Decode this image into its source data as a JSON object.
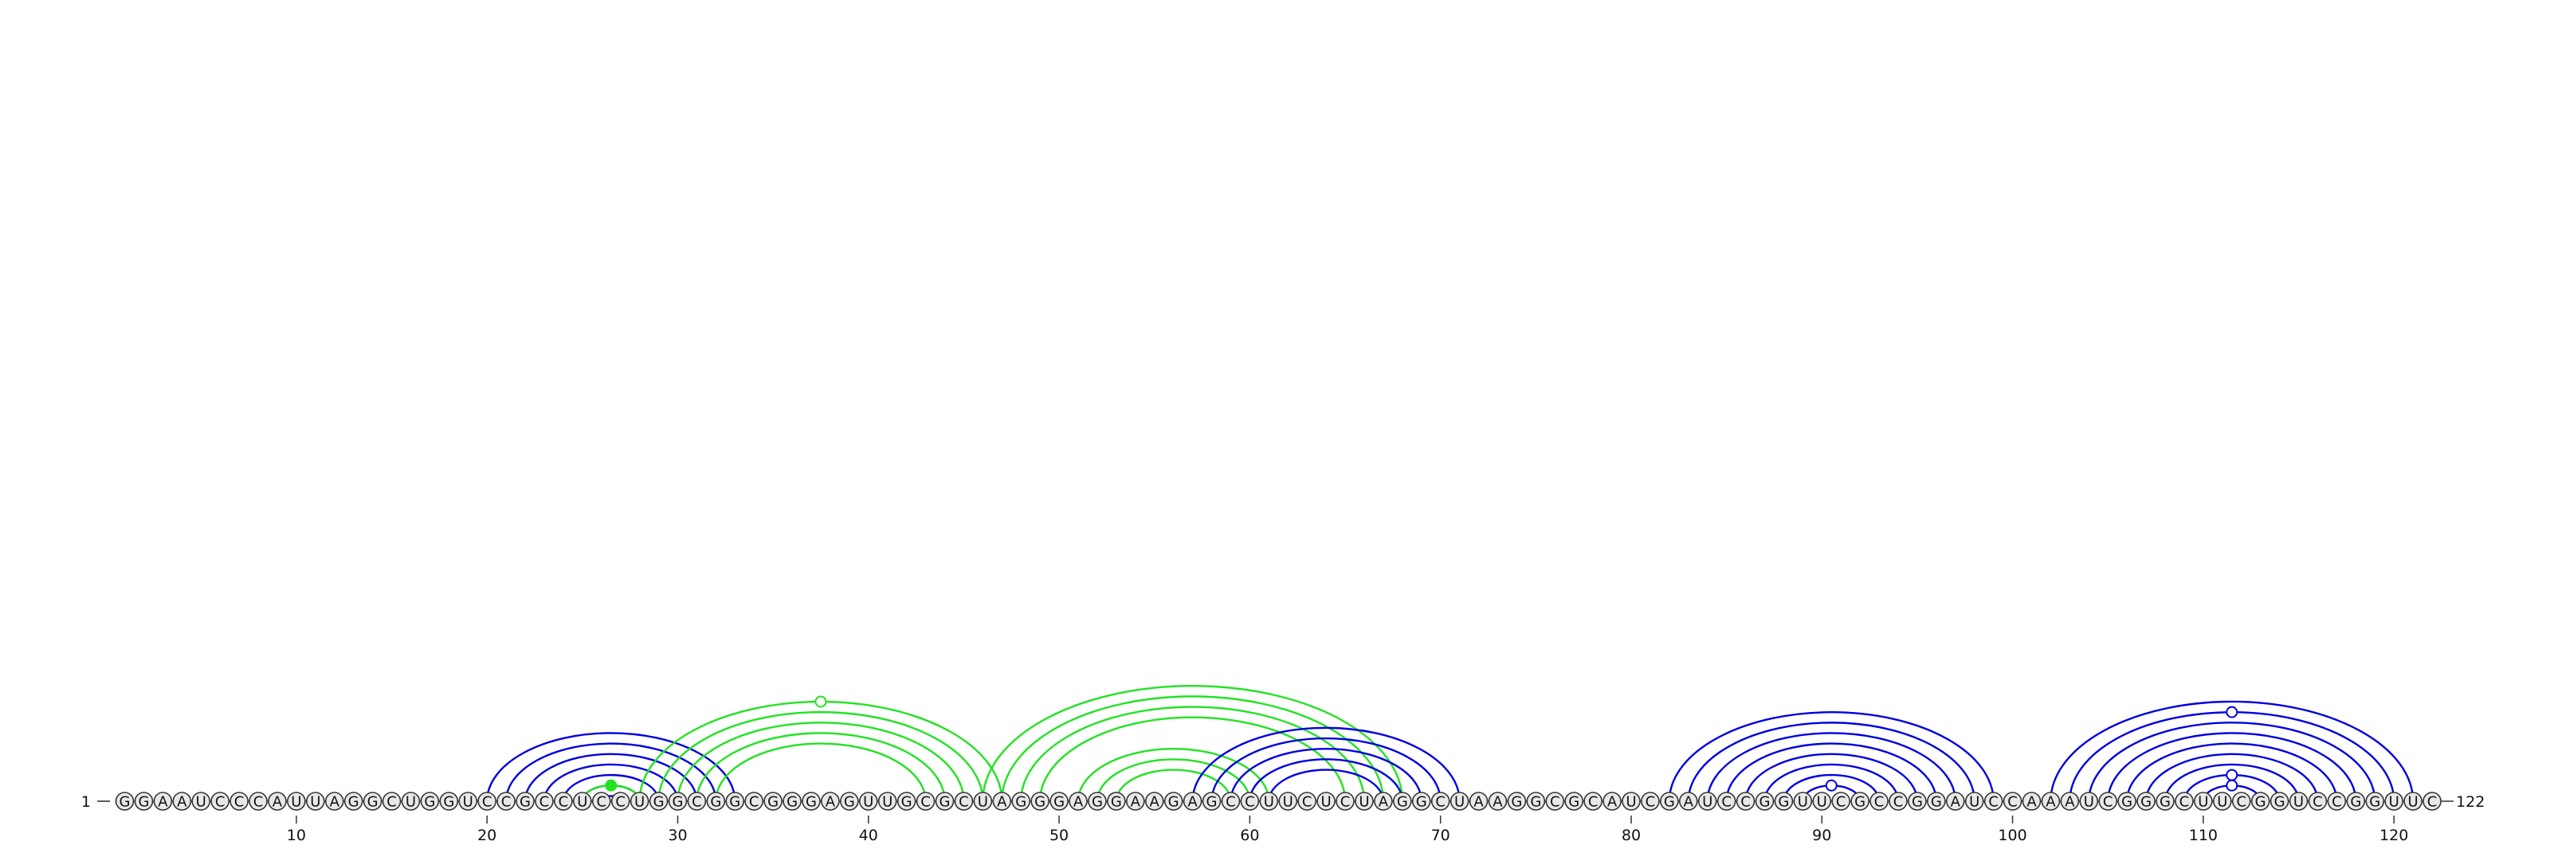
{
  "diagram": {
    "sequence": "GGAAUCCCAUUAGGCUGGUCCGCCUCCUGGCGGCGGGAGUUGCGCUAGGGAGGAAGAGCCUUCUCUAGGCUAAGGCGCAUCGAUCCGGUUCGCCGGAUCCAAAUCGGGCUUCGGUCCGGUUC",
    "start_label": "1",
    "end_label": "122",
    "ticks": [
      10,
      20,
      30,
      40,
      50,
      60,
      70,
      80,
      90,
      100,
      110,
      120
    ],
    "colors": {
      "blue": "#0000e0",
      "green": "#22e222",
      "base_fill": "#e8e8e8",
      "base_stroke": "#333333",
      "text": "#111111"
    },
    "arcs": [
      {
        "i": 20,
        "j": 33,
        "color": "blue"
      },
      {
        "i": 21,
        "j": 32,
        "color": "blue"
      },
      {
        "i": 22,
        "j": 31,
        "color": "blue"
      },
      {
        "i": 23,
        "j": 30,
        "color": "blue"
      },
      {
        "i": 24,
        "j": 29,
        "color": "blue"
      },
      {
        "i": 25,
        "j": 28,
        "color": "blue"
      },
      {
        "i": 26,
        "j": 27,
        "color": "blue"
      },
      {
        "i": 25,
        "j": 28,
        "color": "green",
        "marker": "filled"
      },
      {
        "i": 28,
        "j": 47,
        "color": "green",
        "marker": "open"
      },
      {
        "i": 29,
        "j": 46,
        "color": "green"
      },
      {
        "i": 30,
        "j": 45,
        "color": "green"
      },
      {
        "i": 31,
        "j": 44,
        "color": "green"
      },
      {
        "i": 32,
        "j": 43,
        "color": "green"
      },
      {
        "i": 46,
        "j": 68,
        "color": "green"
      },
      {
        "i": 47,
        "j": 67,
        "color": "green"
      },
      {
        "i": 48,
        "j": 66,
        "color": "green"
      },
      {
        "i": 49,
        "j": 65,
        "color": "green"
      },
      {
        "i": 51,
        "j": 61,
        "color": "green"
      },
      {
        "i": 52,
        "j": 60,
        "color": "green"
      },
      {
        "i": 53,
        "j": 59,
        "color": "green"
      },
      {
        "i": 57,
        "j": 71,
        "color": "blue"
      },
      {
        "i": 58,
        "j": 70,
        "color": "blue"
      },
      {
        "i": 59,
        "j": 69,
        "color": "blue"
      },
      {
        "i": 60,
        "j": 68,
        "color": "blue"
      },
      {
        "i": 61,
        "j": 67,
        "color": "blue"
      },
      {
        "i": 82,
        "j": 99,
        "color": "blue"
      },
      {
        "i": 83,
        "j": 98,
        "color": "blue"
      },
      {
        "i": 84,
        "j": 97,
        "color": "blue"
      },
      {
        "i": 85,
        "j": 96,
        "color": "blue"
      },
      {
        "i": 86,
        "j": 95,
        "color": "blue"
      },
      {
        "i": 87,
        "j": 94,
        "color": "blue"
      },
      {
        "i": 88,
        "j": 93,
        "color": "blue"
      },
      {
        "i": 89,
        "j": 92,
        "color": "blue",
        "marker": "open"
      },
      {
        "i": 102,
        "j": 121,
        "color": "blue"
      },
      {
        "i": 103,
        "j": 120,
        "color": "blue",
        "marker": "open"
      },
      {
        "i": 104,
        "j": 119,
        "color": "blue"
      },
      {
        "i": 105,
        "j": 118,
        "color": "blue"
      },
      {
        "i": 106,
        "j": 117,
        "color": "blue"
      },
      {
        "i": 107,
        "j": 116,
        "color": "blue"
      },
      {
        "i": 108,
        "j": 115,
        "color": "blue"
      },
      {
        "i": 109,
        "j": 114,
        "color": "blue",
        "marker": "open"
      },
      {
        "i": 110,
        "j": 113,
        "color": "blue",
        "marker": "open"
      }
    ]
  }
}
